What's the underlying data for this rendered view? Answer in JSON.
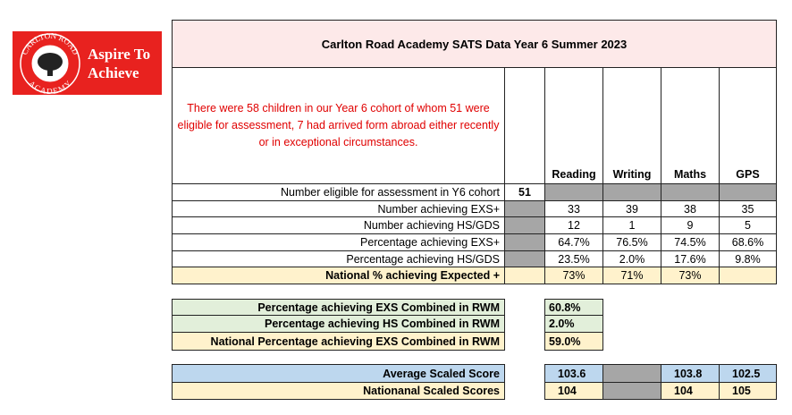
{
  "logo": {
    "badge_top": "CARLTON ROAD",
    "badge_bottom": "ACADEMY",
    "lines": [
      "Aspire To",
      "Achieve"
    ]
  },
  "main_table": {
    "title": "Carlton Road Academy SATS Data Year 6 Summer 2023",
    "note": "There were 58 children in our Year 6 cohort  of whom 51 were eligible for assessment, 7 had arrived form abroad either recently or in exceptional circumstances.",
    "headers": [
      "Reading",
      "Writing",
      "Maths",
      "GPS"
    ],
    "rows": [
      {
        "label": "Number eligible for assessment in Y6 cohort",
        "total": "51",
        "values": [
          null,
          null,
          null,
          null
        ]
      },
      {
        "label": "Number achieving EXS+",
        "values": [
          "33",
          "39",
          "38",
          "35"
        ]
      },
      {
        "label": "Number achieving HS/GDS",
        "values": [
          "12",
          "1",
          "9",
          "5"
        ]
      },
      {
        "label": "Percentage achieving EXS+",
        "values": [
          "64.7%",
          "76.5%",
          "74.5%",
          "68.6%"
        ]
      },
      {
        "label": "Percentage achieving HS/GDS",
        "values": [
          "23.5%",
          "2.0%",
          "17.6%",
          "9.8%"
        ]
      }
    ],
    "national": {
      "label": "National % achieving Expected +",
      "values": [
        "73%",
        "71%",
        "73%"
      ]
    }
  },
  "combined_table": {
    "rows": [
      {
        "label": "Percentage achieving EXS Combined in RWM",
        "value": "60.8%"
      },
      {
        "label": "Percentage achieving HS Combined in RWM",
        "value": "2.0%"
      },
      {
        "label": "National Percentage achieving EXS Combined in RWM",
        "value": "59.0%"
      }
    ]
  },
  "scaled_table": {
    "rows": [
      {
        "label": "Average Scaled Score",
        "values": [
          "103.6",
          null,
          "103.8",
          "102.5"
        ]
      },
      {
        "label": "Nationanal Scaled Scores",
        "values": [
          "104",
          null,
          "104",
          "105"
        ]
      }
    ]
  }
}
